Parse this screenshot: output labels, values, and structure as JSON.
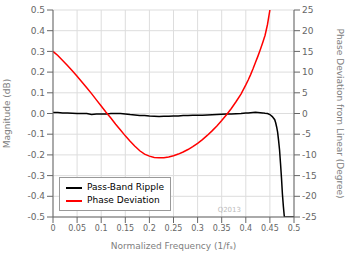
{
  "chart_data": {
    "type": "line",
    "xlabel": "Normalized Frequency (1/fₛ)",
    "ylabel": "Magnitude (dB)",
    "y2label": "Phase Deviation from Linear (Degree)",
    "xlim": [
      0,
      0.5
    ],
    "xticks": [
      0,
      0.05,
      0.1,
      0.15,
      0.2,
      0.25,
      0.3,
      0.35,
      0.4,
      0.45,
      0.5
    ],
    "ylim": [
      -0.5,
      0.5
    ],
    "yticks": [
      -0.5,
      -0.4,
      -0.3,
      -0.2,
      -0.1,
      {
        "value": 0,
        "label": "0.0"
      },
      0.1,
      0.2,
      0.3,
      0.4,
      0.5
    ],
    "y2lim": [
      -25,
      25
    ],
    "y2ticks": [
      -25,
      -20,
      -15,
      -10,
      -5,
      0,
      5,
      10,
      15,
      20,
      25
    ],
    "grid": true,
    "legend": "lower left",
    "annotations": [
      "Q2013"
    ],
    "series": [
      {
        "name": "Pass-Band Ripple",
        "color": "black",
        "x": [
          0.0,
          0.01,
          0.02,
          0.03,
          0.04,
          0.05,
          0.06,
          0.07,
          0.08,
          0.09,
          0.1,
          0.11,
          0.12,
          0.13,
          0.14,
          0.15,
          0.16,
          0.17,
          0.18,
          0.19,
          0.2,
          0.21,
          0.22,
          0.23,
          0.24,
          0.25,
          0.26,
          0.27,
          0.28,
          0.29,
          0.3,
          0.31,
          0.32,
          0.33,
          0.34,
          0.35,
          0.36,
          0.37,
          0.38,
          0.39,
          0.4,
          0.405,
          0.41,
          0.415,
          0.42,
          0.425,
          0.43,
          0.435,
          0.44,
          0.445,
          0.45,
          0.455,
          0.46,
          0.462,
          0.464,
          0.466,
          0.468,
          0.47,
          0.472,
          0.474,
          0.476,
          0.478,
          0.48,
          0.49,
          0.5
        ],
        "values": [
          0.005,
          0.005,
          0.003,
          0.002,
          0.001,
          0.0,
          0.0,
          0.0,
          -0.005,
          -0.003,
          -0.003,
          -0.003,
          0.0,
          0.0,
          0.0,
          -0.002,
          -0.005,
          -0.007,
          -0.01,
          -0.01,
          -0.012,
          -0.013,
          -0.014,
          -0.013,
          -0.013,
          -0.012,
          -0.012,
          -0.01,
          -0.01,
          -0.009,
          -0.009,
          -0.008,
          -0.007,
          -0.006,
          -0.005,
          -0.004,
          -0.003,
          -0.002,
          -0.001,
          0.0,
          0.002,
          0.003,
          0.004,
          0.005,
          0.006,
          0.005,
          0.004,
          0.003,
          0.001,
          0.0,
          -0.005,
          -0.015,
          -0.03,
          -0.045,
          -0.065,
          -0.09,
          -0.13,
          -0.175,
          -0.24,
          -0.31,
          -0.39,
          -0.45,
          -0.5,
          -0.5,
          -0.5
        ]
      },
      {
        "name": "Phase Deviation",
        "color": "red",
        "axis": "y2",
        "x": [
          0.0,
          0.01,
          0.02,
          0.03,
          0.04,
          0.05,
          0.06,
          0.07,
          0.08,
          0.09,
          0.1,
          0.11,
          0.12,
          0.13,
          0.14,
          0.15,
          0.16,
          0.17,
          0.18,
          0.19,
          0.2,
          0.21,
          0.22,
          0.23,
          0.24,
          0.25,
          0.26,
          0.27,
          0.28,
          0.29,
          0.3,
          0.31,
          0.32,
          0.33,
          0.34,
          0.35,
          0.36,
          0.37,
          0.38,
          0.39,
          0.4,
          0.405,
          0.41,
          0.415,
          0.42,
          0.425,
          0.43,
          0.435,
          0.44,
          0.445,
          0.45
        ],
        "values": [
          15.0,
          14.0,
          12.8,
          11.6,
          10.3,
          9.0,
          7.6,
          6.2,
          4.8,
          3.3,
          1.8,
          0.3,
          -1.1,
          -2.6,
          -4.0,
          -5.4,
          -6.7,
          -7.9,
          -9.0,
          -9.8,
          -10.3,
          -10.6,
          -10.7,
          -10.7,
          -10.5,
          -10.2,
          -9.8,
          -9.3,
          -8.7,
          -8.0,
          -7.2,
          -6.3,
          -5.3,
          -4.2,
          -3.0,
          -1.7,
          -0.3,
          1.2,
          2.9,
          4.7,
          6.9,
          8.1,
          9.4,
          10.8,
          12.3,
          13.8,
          15.4,
          17.1,
          18.9,
          21.5,
          25.0
        ]
      }
    ]
  }
}
